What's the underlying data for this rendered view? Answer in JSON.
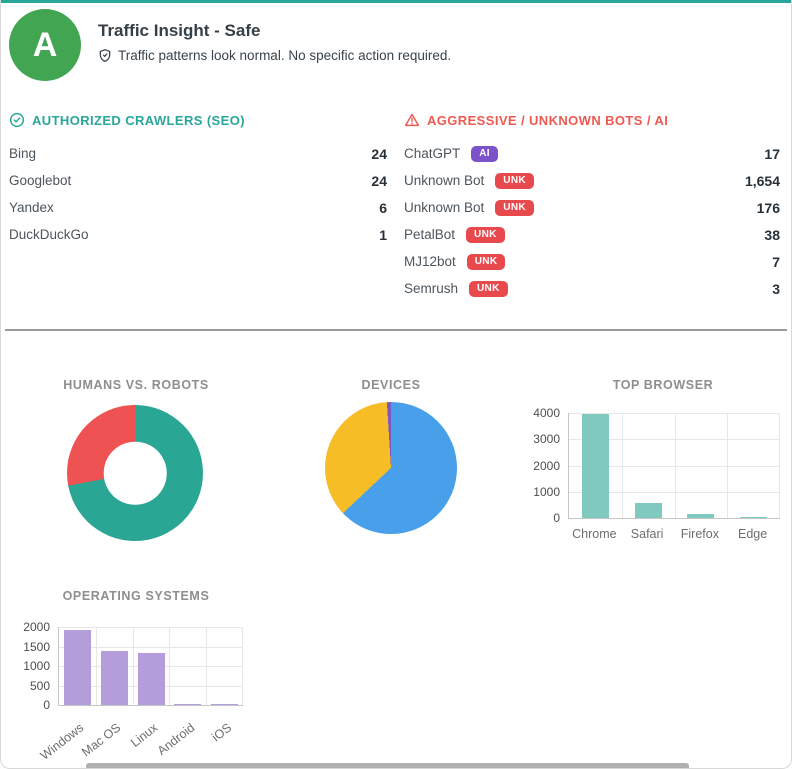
{
  "header": {
    "grade": "A",
    "title": "Traffic Insight - Safe",
    "subtitle": "Traffic patterns look normal. No specific action required."
  },
  "colors": {
    "topbar": "#2aa79b",
    "avatar_green": "#41a552",
    "authorized_accent": "#2aa79b",
    "aggressive_accent": "#ee5a52",
    "badge_ai": "#7b52c7",
    "badge_unk": "#e8494d"
  },
  "authorized": {
    "title": "AUTHORIZED CRAWLERS (SEO)",
    "items": [
      {
        "name": "Bing",
        "value": "24"
      },
      {
        "name": "Googlebot",
        "value": "24"
      },
      {
        "name": "Yandex",
        "value": "6"
      },
      {
        "name": "DuckDuckGo",
        "value": "1"
      }
    ]
  },
  "aggressive": {
    "title": "AGGRESSIVE / UNKNOWN BOTS / AI",
    "items": [
      {
        "name": "ChatGPT",
        "badge": "AI",
        "badge_color": "#7b52c7",
        "value": "17"
      },
      {
        "name": "Unknown Bot",
        "badge": "UNK",
        "badge_color": "#e8494d",
        "value": "1,654"
      },
      {
        "name": "Unknown Bot",
        "badge": "UNK",
        "badge_color": "#e8494d",
        "value": "176"
      },
      {
        "name": "PetalBot",
        "badge": "UNK",
        "badge_color": "#e8494d",
        "value": "38"
      },
      {
        "name": "MJ12bot",
        "badge": "UNK",
        "badge_color": "#e8494d",
        "value": "7"
      },
      {
        "name": "Semrush",
        "badge": "UNK",
        "badge_color": "#e8494d",
        "value": "3"
      }
    ]
  },
  "chart_data": [
    {
      "type": "pie",
      "donut": true,
      "title": "HUMANS VS. ROBOTS",
      "slices": [
        {
          "label": "teal-segment",
          "color": "#2aa695",
          "pct": 72
        },
        {
          "label": "red-segment",
          "color": "#ee5253",
          "pct": 28
        }
      ],
      "legend": "none"
    },
    {
      "type": "pie",
      "donut": false,
      "title": "DEVICES",
      "slices": [
        {
          "label": "blue-segment",
          "color": "#47a0e9",
          "pct": 63
        },
        {
          "label": "yellow-segment",
          "color": "#f6bd27",
          "pct": 36
        },
        {
          "label": "purple-segment",
          "color": "#7e57c2",
          "pct": 1
        }
      ],
      "legend": "none"
    },
    {
      "type": "bar",
      "title": "TOP BROWSER",
      "categories": [
        "Chrome",
        "Safari",
        "Firefox",
        "Edge"
      ],
      "values": [
        3950,
        560,
        150,
        15
      ],
      "ylim": [
        0,
        4000
      ],
      "yticks": [
        0,
        1000,
        2000,
        3000,
        4000
      ],
      "bar_color": "#7fc9be",
      "grid": true,
      "label_rotation": 0
    },
    {
      "type": "bar",
      "title": "OPERATING SYSTEMS",
      "categories": [
        "Windows",
        "Mac OS",
        "Linux",
        "Android",
        "iOS"
      ],
      "values": [
        1920,
        1390,
        1330,
        35,
        10
      ],
      "ylim": [
        0,
        2000
      ],
      "yticks": [
        0,
        500,
        1000,
        1500,
        2000
      ],
      "bar_color": "#b49ddb",
      "grid": true,
      "label_rotation": -38
    }
  ]
}
